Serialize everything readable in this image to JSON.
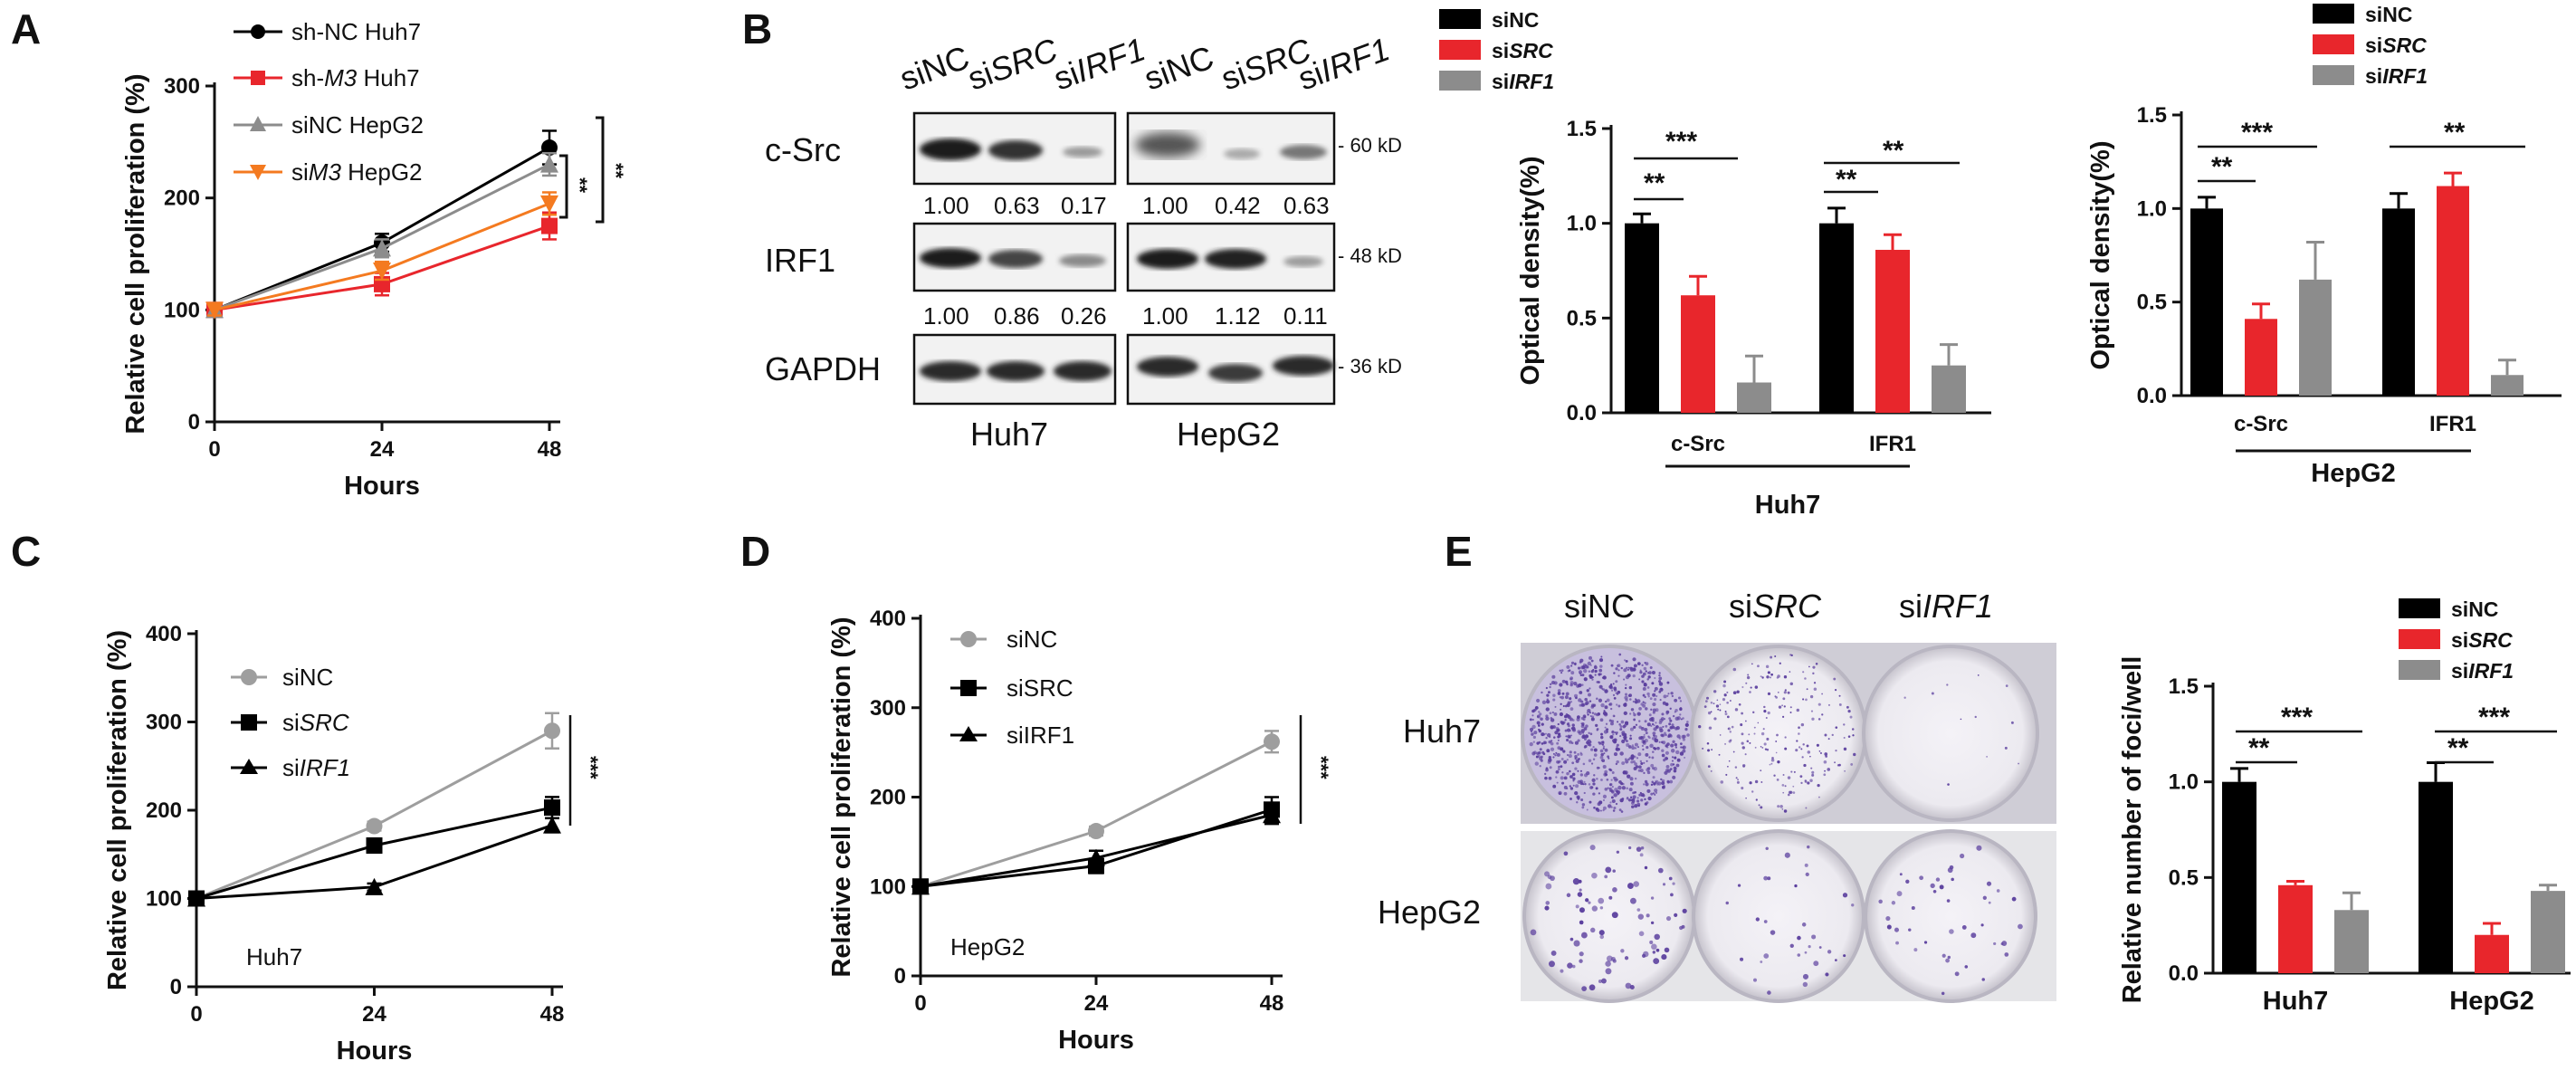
{
  "panels": {
    "A": {
      "letter": "A",
      "legend": [
        {
          "pre": "sh-NC ",
          "ital": "",
          "post": "Huh7"
        },
        {
          "pre": "sh-",
          "ital": "M3",
          "post": " Huh7"
        },
        {
          "pre": "siNC ",
          "ital": "",
          "post": "HepG2"
        },
        {
          "pre": "si",
          "ital": "M3",
          "post": " HepG2"
        }
      ],
      "sig1": "**",
      "sig2": "**"
    },
    "B": {
      "letter": "B",
      "lanes": [
        {
          "pre": "siNC",
          "ital": ""
        },
        {
          "pre": "si",
          "ital": "SRC"
        },
        {
          "pre": "si",
          "ital": "IRF1"
        },
        {
          "pre": "siNC",
          "ital": ""
        },
        {
          "pre": "si",
          "ital": "SRC"
        },
        {
          "pre": "si",
          "ital": "IRF1"
        }
      ],
      "rows": [
        "c-Src",
        "IRF1",
        "GAPDH"
      ],
      "kd": [
        "- 60 kD",
        "- 48 kD",
        "- 36 kD"
      ],
      "src_ratios": [
        "1.00",
        "0.63",
        "0.17",
        "1.00",
        "0.42",
        "0.63"
      ],
      "irf1_ratios": [
        "1.00",
        "0.86",
        "0.26",
        "1.00",
        "1.12",
        "0.11"
      ],
      "cells": [
        "Huh7",
        "HepG2"
      ],
      "bar_legend": [
        {
          "pre": "si",
          "ital": "",
          "post": "NC"
        },
        {
          "pre": "si",
          "ital": "SRC",
          "post": ""
        },
        {
          "pre": "si",
          "ital": "IRF1",
          "post": ""
        }
      ],
      "sig_huh7": [
        "***",
        "**",
        "**",
        "**"
      ],
      "sig_hepg2": [
        "***",
        "**",
        "**"
      ]
    },
    "C": {
      "letter": "C",
      "cell_label": "Huh7",
      "sig": "***",
      "legend": [
        {
          "pre": "siNC",
          "ital": ""
        },
        {
          "pre": "si",
          "ital": "SRC"
        },
        {
          "pre": "si",
          "ital": "IRF1"
        }
      ]
    },
    "D": {
      "letter": "D",
      "cell_label": "HepG2",
      "sig": "***",
      "legend": [
        "siNC",
        "siSRC",
        "siIRF1"
      ]
    },
    "E": {
      "letter": "E",
      "columns": [
        {
          "pre": "siNC",
          "ital": ""
        },
        {
          "pre": "si",
          "ital": "SRC"
        },
        {
          "pre": "si",
          "ital": "IRF1"
        }
      ],
      "rows": [
        "Huh7",
        "HepG2"
      ],
      "bar_legend": [
        {
          "pre": "si",
          "ital": "",
          "post": "NC"
        },
        {
          "pre": "si",
          "ital": "SRC",
          "post": ""
        },
        {
          "pre": "si",
          "ital": "IRF1",
          "post": ""
        }
      ],
      "sig": [
        "***",
        "**",
        "***",
        "**"
      ]
    }
  },
  "colors": {
    "black": "#000000",
    "red": "#e8262c",
    "gray": "#8c8c8c",
    "orange": "#f47a20",
    "lightgray": "#9e9e9e",
    "plate_purple": "#5b3f9e"
  },
  "chart_data": [
    {
      "id": "A",
      "type": "line",
      "xlabel": "Hours",
      "ylabel": "Relative cell proliferation (%)",
      "x": [
        0,
        24,
        48
      ],
      "xlim": [
        0,
        48
      ],
      "ylim": [
        0,
        300
      ],
      "yticks": [
        0,
        100,
        200,
        300
      ],
      "series": [
        {
          "name": "sh-NC Huh7",
          "values": [
            100,
            160,
            245
          ],
          "err": [
            5,
            8,
            15
          ],
          "color": "#000000",
          "marker": "circle"
        },
        {
          "name": "sh-M3 Huh7",
          "values": [
            100,
            123,
            175
          ],
          "err": [
            5,
            10,
            12
          ],
          "color": "#e8262c",
          "marker": "square"
        },
        {
          "name": "siNC HepG2",
          "values": [
            100,
            155,
            230
          ],
          "err": [
            5,
            8,
            10
          ],
          "color": "#8c8c8c",
          "marker": "triangle"
        },
        {
          "name": "siM3 HepG2",
          "values": [
            100,
            135,
            195
          ],
          "err": [
            5,
            8,
            10
          ],
          "color": "#f47a20",
          "marker": "triangle-down"
        }
      ]
    },
    {
      "id": "B-Huh7",
      "type": "bar",
      "xlabel": "Huh7",
      "ylabel": "Optical density(%)",
      "categories": [
        "c-Src",
        "IFR1"
      ],
      "ylim": [
        0,
        1.5
      ],
      "yticks": [
        0.0,
        0.5,
        1.0,
        1.5
      ],
      "series": [
        {
          "name": "siNC",
          "values": [
            1.0,
            1.0
          ],
          "err": [
            0.05,
            0.08
          ]
        },
        {
          "name": "siSRC",
          "values": [
            0.62,
            0.86
          ],
          "err": [
            0.1,
            0.08
          ]
        },
        {
          "name": "siIRF1",
          "values": [
            0.16,
            0.25
          ],
          "err": [
            0.14,
            0.11
          ]
        }
      ]
    },
    {
      "id": "B-HepG2",
      "type": "bar",
      "xlabel": "HepG2",
      "ylabel": "Optical density(%)",
      "categories": [
        "c-Src",
        "IFR1"
      ],
      "ylim": [
        0,
        1.5
      ],
      "yticks": [
        0.0,
        0.5,
        1.0,
        1.5
      ],
      "series": [
        {
          "name": "siNC",
          "values": [
            1.0,
            1.0
          ],
          "err": [
            0.06,
            0.08
          ]
        },
        {
          "name": "siSRC",
          "values": [
            0.41,
            1.12
          ],
          "err": [
            0.08,
            0.07
          ]
        },
        {
          "name": "siIRF1",
          "values": [
            0.62,
            0.11
          ],
          "err": [
            0.2,
            0.08
          ]
        }
      ]
    },
    {
      "id": "C",
      "type": "line",
      "xlabel": "Hours",
      "ylabel": "Relative cell proliferation (%)",
      "x": [
        0,
        24,
        48
      ],
      "xlim": [
        0,
        48
      ],
      "ylim": [
        0,
        400
      ],
      "yticks": [
        0,
        100,
        200,
        300,
        400
      ],
      "series": [
        {
          "name": "siNC",
          "values": [
            100,
            182,
            290
          ],
          "err": [
            5,
            5,
            20
          ],
          "color": "#9e9e9e",
          "marker": "circle"
        },
        {
          "name": "siSRC",
          "values": [
            100,
            160,
            203
          ],
          "err": [
            5,
            8,
            12
          ],
          "color": "#000000",
          "marker": "square"
        },
        {
          "name": "siIRF1",
          "values": [
            100,
            113,
            183
          ],
          "err": [
            4,
            4,
            8
          ],
          "color": "#000000",
          "marker": "triangle"
        }
      ]
    },
    {
      "id": "D",
      "type": "line",
      "xlabel": "Hours",
      "ylabel": "Relative cell proliferation (%)",
      "x": [
        0,
        24,
        48
      ],
      "xlim": [
        0,
        48
      ],
      "ylim": [
        0,
        400
      ],
      "yticks": [
        0,
        100,
        200,
        300,
        400
      ],
      "series": [
        {
          "name": "siNC",
          "values": [
            100,
            162,
            262
          ],
          "err": [
            5,
            5,
            12
          ],
          "color": "#9e9e9e",
          "marker": "circle"
        },
        {
          "name": "siSRC",
          "values": [
            100,
            123,
            186
          ],
          "err": [
            5,
            8,
            14
          ],
          "color": "#000000",
          "marker": "square"
        },
        {
          "name": "siIRF1",
          "values": [
            100,
            132,
            180
          ],
          "err": [
            5,
            8,
            10
          ],
          "color": "#000000",
          "marker": "triangle"
        }
      ]
    },
    {
      "id": "E",
      "type": "bar",
      "xlabel": "",
      "ylabel": "Relative number of foci/well",
      "categories": [
        "Huh7",
        "HepG2"
      ],
      "ylim": [
        0,
        1.5
      ],
      "yticks": [
        0.0,
        0.5,
        1.0,
        1.5
      ],
      "series": [
        {
          "name": "siNC",
          "values": [
            1.0,
            1.0
          ],
          "err": [
            0.07,
            0.1
          ]
        },
        {
          "name": "siSRC",
          "values": [
            0.46,
            0.2
          ],
          "err": [
            0.02,
            0.06
          ]
        },
        {
          "name": "siIRF1",
          "values": [
            0.33,
            0.43
          ],
          "err": [
            0.09,
            0.03
          ]
        }
      ]
    }
  ]
}
